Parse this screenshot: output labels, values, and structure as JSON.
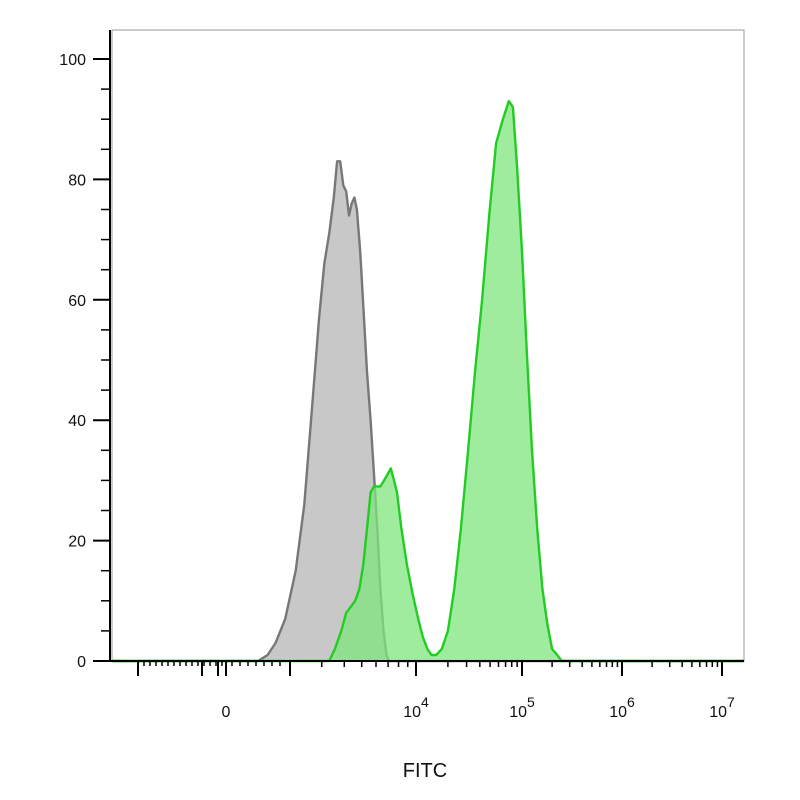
{
  "chart_data": {
    "type": "area",
    "title": "",
    "xlabel": "FITC",
    "ylabel": "",
    "x_scale": "biexponential",
    "ylim": [
      0,
      104
    ],
    "grid": false,
    "legend": "none",
    "y_ticks": [
      {
        "value": 0,
        "label": "0"
      },
      {
        "value": 20,
        "label": "20"
      },
      {
        "value": 40,
        "label": "40"
      },
      {
        "value": 60,
        "label": "60"
      },
      {
        "value": 80,
        "label": "80"
      },
      {
        "value": 100,
        "label": "100"
      }
    ],
    "x_ticks": [
      {
        "value": 0,
        "base": "0",
        "exp": ""
      },
      {
        "value": 10000,
        "base": "10",
        "exp": "4"
      },
      {
        "value": 100000,
        "base": "10",
        "exp": "5"
      },
      {
        "value": 1000000,
        "base": "10",
        "exp": "6"
      },
      {
        "value": 10000000,
        "base": "10",
        "exp": "7"
      }
    ],
    "series": [
      {
        "name": "",
        "fill": "#c8c8c8",
        "stroke": "#777777",
        "points": [
          [
            -30000,
            0
          ],
          [
            1000,
            0
          ],
          [
            1300,
            1
          ],
          [
            1550,
            3
          ],
          [
            1850,
            7
          ],
          [
            2150,
            15
          ],
          [
            2400,
            26
          ],
          [
            2650,
            42
          ],
          [
            2900,
            57
          ],
          [
            3100,
            66
          ],
          [
            3300,
            71
          ],
          [
            3500,
            77
          ],
          [
            3650,
            83
          ],
          [
            3800,
            83
          ],
          [
            3950,
            79
          ],
          [
            4100,
            78
          ],
          [
            4250,
            74
          ],
          [
            4400,
            76
          ],
          [
            4550,
            77
          ],
          [
            4700,
            75
          ],
          [
            4900,
            68
          ],
          [
            5100,
            59
          ],
          [
            5350,
            48
          ],
          [
            5600,
            40
          ],
          [
            5850,
            31
          ],
          [
            6100,
            22
          ],
          [
            6350,
            12
          ],
          [
            6600,
            5
          ],
          [
            6850,
            1
          ],
          [
            7100,
            0
          ],
          [
            20000000,
            0
          ]
        ]
      },
      {
        "name": "",
        "fill": "#7fe67f",
        "stroke": "#22cc22",
        "points": [
          [
            -30000,
            0
          ],
          [
            3300,
            0
          ],
          [
            3550,
            2
          ],
          [
            3850,
            5
          ],
          [
            4100,
            8
          ],
          [
            4350,
            9
          ],
          [
            4600,
            10
          ],
          [
            4850,
            12
          ],
          [
            5100,
            16
          ],
          [
            5350,
            22
          ],
          [
            5600,
            28
          ],
          [
            5850,
            29
          ],
          [
            6100,
            29
          ],
          [
            6350,
            29
          ],
          [
            6650,
            30
          ],
          [
            6950,
            31
          ],
          [
            7250,
            32
          ],
          [
            7550,
            30
          ],
          [
            7850,
            28
          ],
          [
            8300,
            22
          ],
          [
            8900,
            16
          ],
          [
            9600,
            11
          ],
          [
            10500,
            7
          ],
          [
            11600,
            4
          ],
          [
            12800,
            2
          ],
          [
            14000,
            1
          ],
          [
            15500,
            1
          ],
          [
            17500,
            2
          ],
          [
            20000,
            5
          ],
          [
            23000,
            12
          ],
          [
            26500,
            22
          ],
          [
            31000,
            35
          ],
          [
            36000,
            48
          ],
          [
            42000,
            60
          ],
          [
            49000,
            74
          ],
          [
            57000,
            86
          ],
          [
            66000,
            90
          ],
          [
            75000,
            93
          ],
          [
            82000,
            92
          ],
          [
            90000,
            82
          ],
          [
            100000,
            68
          ],
          [
            112000,
            51
          ],
          [
            126000,
            35
          ],
          [
            142000,
            22
          ],
          [
            160000,
            12
          ],
          [
            180000,
            6
          ],
          [
            200000,
            2
          ],
          [
            225000,
            1
          ],
          [
            250000,
            0
          ],
          [
            20000000,
            0
          ]
        ]
      }
    ]
  }
}
